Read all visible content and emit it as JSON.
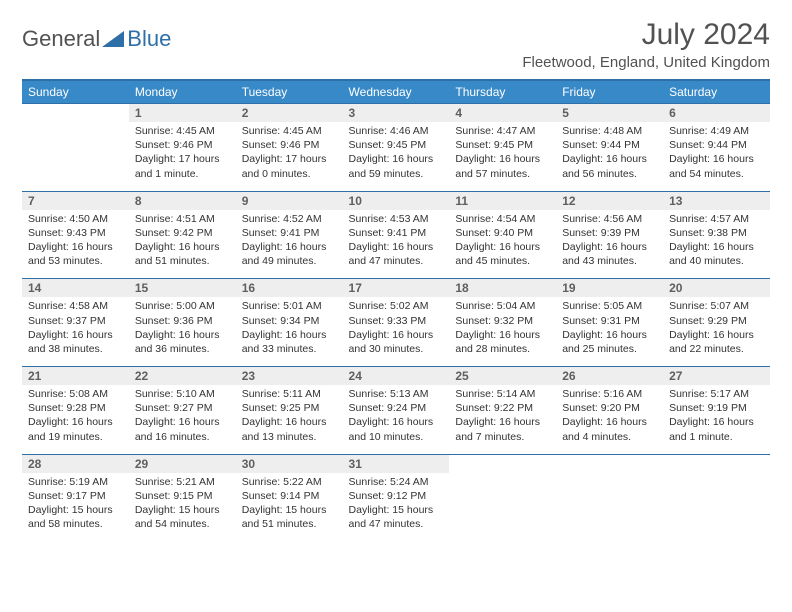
{
  "logo": {
    "text1": "General",
    "text2": "Blue"
  },
  "title": "July 2024",
  "location": "Fleetwood, England, United Kingdom",
  "colors": {
    "header_bg": "#3889c7",
    "border": "#2f6fa7",
    "daynum_bg": "#eeeeee",
    "text_muted": "#525252"
  },
  "dayNames": [
    "Sunday",
    "Monday",
    "Tuesday",
    "Wednesday",
    "Thursday",
    "Friday",
    "Saturday"
  ],
  "weeks": [
    {
      "nums": [
        "",
        "1",
        "2",
        "3",
        "4",
        "5",
        "6"
      ],
      "cells": [
        null,
        {
          "sr": "Sunrise: 4:45 AM",
          "ss": "Sunset: 9:46 PM",
          "dl": "Daylight: 17 hours and 1 minute."
        },
        {
          "sr": "Sunrise: 4:45 AM",
          "ss": "Sunset: 9:46 PM",
          "dl": "Daylight: 17 hours and 0 minutes."
        },
        {
          "sr": "Sunrise: 4:46 AM",
          "ss": "Sunset: 9:45 PM",
          "dl": "Daylight: 16 hours and 59 minutes."
        },
        {
          "sr": "Sunrise: 4:47 AM",
          "ss": "Sunset: 9:45 PM",
          "dl": "Daylight: 16 hours and 57 minutes."
        },
        {
          "sr": "Sunrise: 4:48 AM",
          "ss": "Sunset: 9:44 PM",
          "dl": "Daylight: 16 hours and 56 minutes."
        },
        {
          "sr": "Sunrise: 4:49 AM",
          "ss": "Sunset: 9:44 PM",
          "dl": "Daylight: 16 hours and 54 minutes."
        }
      ]
    },
    {
      "nums": [
        "7",
        "8",
        "9",
        "10",
        "11",
        "12",
        "13"
      ],
      "cells": [
        {
          "sr": "Sunrise: 4:50 AM",
          "ss": "Sunset: 9:43 PM",
          "dl": "Daylight: 16 hours and 53 minutes."
        },
        {
          "sr": "Sunrise: 4:51 AM",
          "ss": "Sunset: 9:42 PM",
          "dl": "Daylight: 16 hours and 51 minutes."
        },
        {
          "sr": "Sunrise: 4:52 AM",
          "ss": "Sunset: 9:41 PM",
          "dl": "Daylight: 16 hours and 49 minutes."
        },
        {
          "sr": "Sunrise: 4:53 AM",
          "ss": "Sunset: 9:41 PM",
          "dl": "Daylight: 16 hours and 47 minutes."
        },
        {
          "sr": "Sunrise: 4:54 AM",
          "ss": "Sunset: 9:40 PM",
          "dl": "Daylight: 16 hours and 45 minutes."
        },
        {
          "sr": "Sunrise: 4:56 AM",
          "ss": "Sunset: 9:39 PM",
          "dl": "Daylight: 16 hours and 43 minutes."
        },
        {
          "sr": "Sunrise: 4:57 AM",
          "ss": "Sunset: 9:38 PM",
          "dl": "Daylight: 16 hours and 40 minutes."
        }
      ]
    },
    {
      "nums": [
        "14",
        "15",
        "16",
        "17",
        "18",
        "19",
        "20"
      ],
      "cells": [
        {
          "sr": "Sunrise: 4:58 AM",
          "ss": "Sunset: 9:37 PM",
          "dl": "Daylight: 16 hours and 38 minutes."
        },
        {
          "sr": "Sunrise: 5:00 AM",
          "ss": "Sunset: 9:36 PM",
          "dl": "Daylight: 16 hours and 36 minutes."
        },
        {
          "sr": "Sunrise: 5:01 AM",
          "ss": "Sunset: 9:34 PM",
          "dl": "Daylight: 16 hours and 33 minutes."
        },
        {
          "sr": "Sunrise: 5:02 AM",
          "ss": "Sunset: 9:33 PM",
          "dl": "Daylight: 16 hours and 30 minutes."
        },
        {
          "sr": "Sunrise: 5:04 AM",
          "ss": "Sunset: 9:32 PM",
          "dl": "Daylight: 16 hours and 28 minutes."
        },
        {
          "sr": "Sunrise: 5:05 AM",
          "ss": "Sunset: 9:31 PM",
          "dl": "Daylight: 16 hours and 25 minutes."
        },
        {
          "sr": "Sunrise: 5:07 AM",
          "ss": "Sunset: 9:29 PM",
          "dl": "Daylight: 16 hours and 22 minutes."
        }
      ]
    },
    {
      "nums": [
        "21",
        "22",
        "23",
        "24",
        "25",
        "26",
        "27"
      ],
      "cells": [
        {
          "sr": "Sunrise: 5:08 AM",
          "ss": "Sunset: 9:28 PM",
          "dl": "Daylight: 16 hours and 19 minutes."
        },
        {
          "sr": "Sunrise: 5:10 AM",
          "ss": "Sunset: 9:27 PM",
          "dl": "Daylight: 16 hours and 16 minutes."
        },
        {
          "sr": "Sunrise: 5:11 AM",
          "ss": "Sunset: 9:25 PM",
          "dl": "Daylight: 16 hours and 13 minutes."
        },
        {
          "sr": "Sunrise: 5:13 AM",
          "ss": "Sunset: 9:24 PM",
          "dl": "Daylight: 16 hours and 10 minutes."
        },
        {
          "sr": "Sunrise: 5:14 AM",
          "ss": "Sunset: 9:22 PM",
          "dl": "Daylight: 16 hours and 7 minutes."
        },
        {
          "sr": "Sunrise: 5:16 AM",
          "ss": "Sunset: 9:20 PM",
          "dl": "Daylight: 16 hours and 4 minutes."
        },
        {
          "sr": "Sunrise: 5:17 AM",
          "ss": "Sunset: 9:19 PM",
          "dl": "Daylight: 16 hours and 1 minute."
        }
      ]
    },
    {
      "nums": [
        "28",
        "29",
        "30",
        "31",
        "",
        "",
        ""
      ],
      "cells": [
        {
          "sr": "Sunrise: 5:19 AM",
          "ss": "Sunset: 9:17 PM",
          "dl": "Daylight: 15 hours and 58 minutes."
        },
        {
          "sr": "Sunrise: 5:21 AM",
          "ss": "Sunset: 9:15 PM",
          "dl": "Daylight: 15 hours and 54 minutes."
        },
        {
          "sr": "Sunrise: 5:22 AM",
          "ss": "Sunset: 9:14 PM",
          "dl": "Daylight: 15 hours and 51 minutes."
        },
        {
          "sr": "Sunrise: 5:24 AM",
          "ss": "Sunset: 9:12 PM",
          "dl": "Daylight: 15 hours and 47 minutes."
        },
        null,
        null,
        null
      ]
    }
  ]
}
